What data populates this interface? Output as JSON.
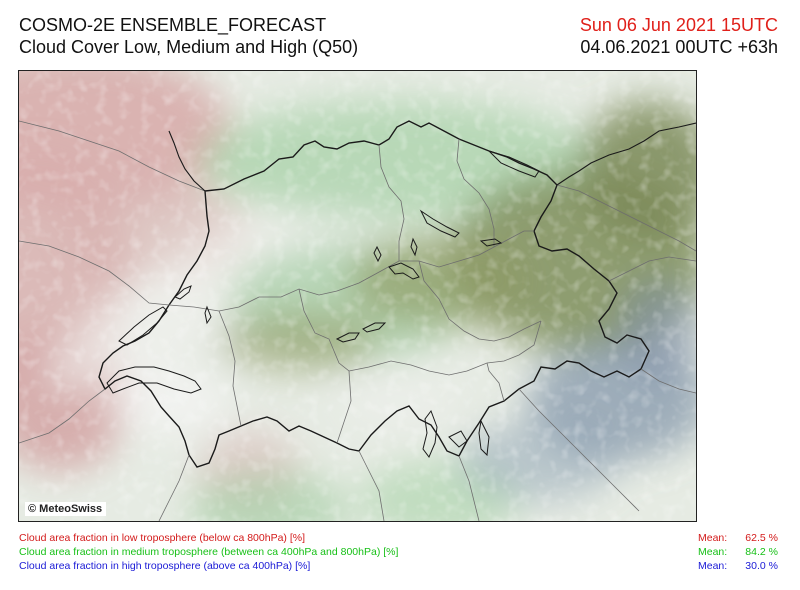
{
  "header": {
    "title": "COSMO-2E ENSEMBLE_FORECAST",
    "subtitle": "Cloud Cover Low, Medium and High (Q50)",
    "valid_time": "Sun 06 Jun 2021 15UTC",
    "run_time": "04.06.2021 00UTC +63h"
  },
  "map": {
    "copyright": "© MeteoSwiss"
  },
  "legend": {
    "items": [
      {
        "label": "Cloud area fraction in low troposphere (below ca 800hPa) [%]",
        "color": "#d31a1a",
        "mean_label": "Mean:",
        "mean_value": "62.5 %"
      },
      {
        "label": "Cloud area fraction in medium troposphere (between ca 400hPa and 800hPa) [%]",
        "color": "#17c017",
        "mean_label": "Mean:",
        "mean_value": "84.2 %"
      },
      {
        "label": "Cloud area fraction in high troposphere (above ca 400hPa) [%]",
        "color": "#1a1ad6",
        "mean_label": "Mean:",
        "mean_value": "30.0 %"
      }
    ]
  }
}
